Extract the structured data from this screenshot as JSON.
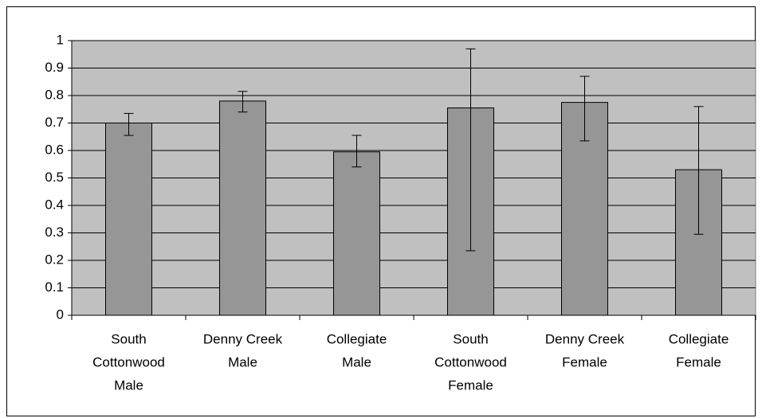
{
  "chart_data": {
    "type": "bar",
    "categories": [
      [
        "South",
        "Cottonwood",
        "Male"
      ],
      [
        "Denny Creek",
        "Male"
      ],
      [
        "Collegiate",
        "Male"
      ],
      [
        "South",
        "Cottonwood",
        "Female"
      ],
      [
        "Denny Creek",
        "Female"
      ],
      [
        "Collegiate",
        "Female"
      ]
    ],
    "values": [
      0.7,
      0.78,
      0.595,
      0.755,
      0.775,
      0.53
    ],
    "error_minus": [
      0.045,
      0.04,
      0.055,
      0.52,
      0.14,
      0.235
    ],
    "error_plus": [
      0.035,
      0.035,
      0.06,
      0.215,
      0.095,
      0.23
    ],
    "color": "#969696",
    "plot_background": "#c0c0c0",
    "ylim": [
      0,
      1
    ],
    "yticks": [
      0,
      0.1,
      0.2,
      0.3,
      0.4,
      0.5,
      0.6,
      0.7,
      0.8,
      0.9,
      1
    ],
    "grid": true
  }
}
